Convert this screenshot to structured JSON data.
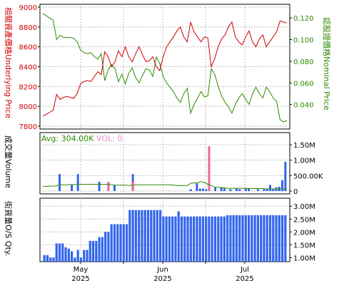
{
  "colors": {
    "underlying": "#cc0000",
    "nominal": "#2d8a00",
    "turnover_up": "#3366ee",
    "turnover_alt": "#ee6699",
    "avg_line": "#2d8a00",
    "os_bar": "#3366ee",
    "grid": "#bbbbbb",
    "frame": "#000000",
    "avg_text": "#2d8a00",
    "vol_text": "#ee88cc"
  },
  "chart_data": [
    {
      "type": "line",
      "title": "",
      "left_axis_label": "相關資產價格Underlying Price",
      "right_axis_label": "認股證價格Nominal Price",
      "left_ylim": [
        7800,
        9000
      ],
      "left_ticks": [
        "7800",
        "8000",
        "8200",
        "8400",
        "8600",
        "8800",
        "9000"
      ],
      "right_ylim": [
        0.02,
        0.13
      ],
      "right_ticks": [
        "0.040",
        "0.060",
        "0.080",
        "0.100",
        "0.120"
      ],
      "series": [
        {
          "role": "underlying",
          "values": [
            7900,
            7920,
            7940,
            7960,
            8120,
            8070,
            8090,
            8100,
            8090,
            8080,
            8130,
            8230,
            8250,
            8260,
            8250,
            8300,
            8350,
            8320,
            8550,
            8500,
            8400,
            8450,
            8560,
            8500,
            8600,
            8500,
            8450,
            8530,
            8600,
            8520,
            8450,
            8460,
            8500,
            8400,
            8360,
            8500,
            8600,
            8650,
            8700,
            8760,
            8800,
            8700,
            8650,
            8850,
            8750,
            8700,
            8650,
            8700,
            8690,
            8400,
            8480,
            8600,
            8680,
            8720,
            8800,
            8850,
            8700,
            8650,
            8620,
            8700,
            8760,
            8650,
            8600,
            8680,
            8720,
            8600,
            8650,
            8700,
            8750,
            8860,
            8850,
            8840
          ]
        },
        {
          "role": "nominal",
          "values": [
            0.124,
            0.122,
            0.12,
            0.118,
            0.1,
            0.104,
            0.102,
            0.102,
            0.102,
            0.101,
            0.098,
            0.09,
            0.088,
            0.087,
            0.088,
            0.084,
            0.082,
            0.087,
            0.062,
            0.072,
            0.077,
            0.073,
            0.061,
            0.068,
            0.059,
            0.069,
            0.074,
            0.065,
            0.06,
            0.067,
            0.073,
            0.072,
            0.066,
            0.084,
            0.078,
            0.066,
            0.06,
            0.056,
            0.052,
            0.046,
            0.042,
            0.05,
            0.055,
            0.032,
            0.04,
            0.046,
            0.052,
            0.047,
            0.048,
            0.073,
            0.068,
            0.057,
            0.048,
            0.042,
            0.038,
            0.032,
            0.04,
            0.046,
            0.05,
            0.045,
            0.04,
            0.05,
            0.056,
            0.05,
            0.046,
            0.056,
            0.052,
            0.046,
            0.043,
            0.026,
            0.024,
            0.025
          ]
        }
      ]
    },
    {
      "type": "bar",
      "title": "",
      "axis_label": "成交量Volume",
      "avg_label": "Avg: 304.00K",
      "vol_label": "VOL: 0",
      "ylim": [
        0,
        1800000
      ],
      "ticks": [
        "0",
        "500.00K",
        "1.00M",
        "1.50M"
      ],
      "values": [
        0,
        0,
        0,
        0,
        0,
        550000,
        0,
        0,
        0,
        200000,
        0,
        550000,
        0,
        0,
        0,
        0,
        0,
        0,
        300000,
        0,
        0,
        0,
        0,
        200000,
        0,
        0,
        0,
        0,
        0,
        550000,
        0,
        0,
        0,
        0,
        0,
        0,
        0,
        0,
        0,
        0,
        0,
        0,
        0,
        0,
        0,
        0,
        0,
        0,
        0,
        0,
        250000,
        80000,
        0,
        0,
        0,
        0,
        0,
        0,
        0,
        0,
        0,
        0,
        0,
        0,
        0,
        0,
        0,
        0,
        0,
        0,
        0,
        0,
        0,
        0,
        0,
        0,
        0,
        0,
        0,
        0
      ],
      "alt_values": [
        0,
        0,
        0,
        0,
        0,
        0,
        0,
        0,
        0,
        0,
        0,
        0,
        0,
        0,
        0,
        0,
        0,
        0,
        0,
        0,
        0,
        300000,
        0,
        0,
        0,
        0,
        0,
        0,
        0,
        300000,
        0,
        0,
        0,
        0,
        0,
        0,
        0,
        0,
        0,
        0,
        0,
        0,
        0,
        0,
        0,
        0,
        0,
        0,
        0,
        0,
        0,
        0,
        0,
        0,
        1450000,
        0,
        0,
        0,
        0,
        0,
        0,
        0,
        0,
        0,
        0,
        0,
        0,
        0,
        0,
        0,
        0,
        0,
        0,
        0,
        0,
        0,
        0,
        0,
        0,
        0
      ],
      "extra_up": [
        [
          48,
          60000
        ],
        [
          56,
          110000
        ],
        [
          59,
          90000
        ],
        [
          61,
          60000
        ],
        [
          66,
          80000
        ],
        [
          67,
          80000
        ],
        [
          77,
          60000
        ],
        [
          78,
          80000
        ],
        [
          79,
          60000
        ],
        [
          76,
          120000
        ],
        [
          74,
          200000
        ],
        [
          53,
          60000
        ],
        [
          52,
          80000
        ],
        [
          58,
          110000
        ],
        [
          63,
          80000
        ],
        [
          64,
          60000
        ],
        [
          70,
          60000
        ],
        [
          72,
          60000
        ],
        [
          73,
          60000
        ],
        [
          75,
          60000
        ],
        [
          77,
          140000
        ],
        [
          78,
          350000
        ],
        [
          79,
          950000
        ]
      ],
      "avg_values": [
        150000,
        150000,
        160000,
        160000,
        170000,
        200000,
        200000,
        200000,
        210000,
        210000,
        210000,
        220000,
        220000,
        220000,
        220000,
        220000,
        220000,
        220000,
        220000,
        220000,
        200000,
        190000,
        190000,
        190000,
        190000,
        180000,
        190000,
        200000,
        200000,
        200000,
        200000,
        200000,
        200000,
        200000,
        200000,
        200000,
        200000,
        200000,
        190000,
        180000,
        170000,
        180000,
        180000,
        250000,
        260000,
        270000,
        310000,
        280000,
        220000,
        180000,
        130000,
        120000,
        110000,
        100000,
        90000,
        90000,
        90000,
        90000,
        90000,
        90000,
        80000,
        80000,
        80000,
        80000,
        80000,
        70000,
        70000,
        70000,
        70000,
        70000,
        70000,
        70000
      ]
    },
    {
      "type": "bar",
      "title": "",
      "axis_label": "街貨量O/S Qty.",
      "ylim": [
        900000,
        3200000
      ],
      "ticks": [
        "1.00M",
        "1.50M",
        "2.00M",
        "2.50M",
        "3.00M"
      ],
      "values": [
        1100000,
        1100000,
        1000000,
        1000000,
        1550000,
        1550000,
        1550000,
        1400000,
        1350000,
        1250000,
        1000000,
        1300000,
        1000000,
        1300000,
        1300000,
        1650000,
        1650000,
        1650000,
        1800000,
        1800000,
        2000000,
        2000000,
        2300000,
        2300000,
        2300000,
        2300000,
        2300000,
        2300000,
        2850000,
        2850000,
        2850000,
        2850000,
        2850000,
        2850000,
        2850000,
        2850000,
        2850000,
        2850000,
        2850000,
        2600000,
        2600000,
        2600000,
        2600000,
        2600000,
        2800000,
        2600000,
        2600000,
        2600000,
        2600000,
        2600000,
        2600000,
        2600000,
        2600000,
        2600000,
        2600000,
        2600000,
        2600000,
        2600000,
        2600000,
        2600000,
        2650000,
        2650000,
        2650000,
        2650000,
        2650000,
        2650000,
        2650000,
        2650000,
        2650000,
        2650000,
        2650000,
        2650000,
        2650000,
        2650000,
        2650000,
        2650000,
        2650000,
        2650000,
        2650000,
        2650000
      ]
    }
  ],
  "x_axis": {
    "months": [
      {
        "month": "May",
        "year": "2025"
      },
      {
        "month": "Jun",
        "year": "2025"
      },
      {
        "month": "Jul",
        "year": "2025"
      }
    ]
  }
}
